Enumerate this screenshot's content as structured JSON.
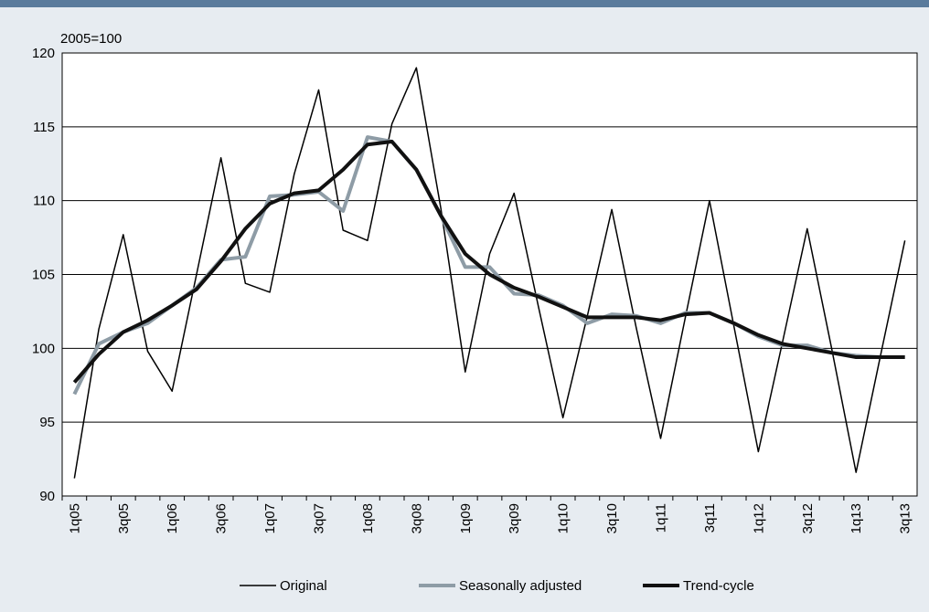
{
  "chart_data": {
    "type": "line",
    "y_label": "2005=100",
    "categories": [
      "1q05",
      null,
      "3q05",
      null,
      "1q06",
      null,
      "3q06",
      null,
      "1q07",
      null,
      "3q07",
      null,
      "1q08",
      null,
      "3q08",
      null,
      "1q09",
      null,
      "3q09",
      null,
      "1q10",
      null,
      "3q10",
      null,
      "1q11",
      null,
      "3q11",
      null,
      "1q12",
      null,
      "3q12",
      null,
      "1q13",
      null,
      "3q13"
    ],
    "series": [
      {
        "name": "Original",
        "color": "#000000",
        "width": 1.5,
        "values": [
          91.2,
          101.3,
          107.7,
          99.8,
          97.1,
          105.0,
          112.9,
          104.4,
          103.8,
          111.8,
          117.5,
          108.0,
          107.3,
          115.2,
          119.0,
          109.5,
          98.4,
          106.4,
          110.5,
          102.8,
          95.3,
          102.2,
          109.4,
          101.4,
          93.9,
          102.0,
          110.0,
          101.5,
          93.0,
          100.5,
          108.1,
          100.0,
          91.6,
          99.5,
          107.3
        ]
      },
      {
        "name": "Seasonally adjusted",
        "color": "#8e9ca6",
        "width": 4,
        "values": [
          96.9,
          100.3,
          101.1,
          101.7,
          102.9,
          104.1,
          106.0,
          106.2,
          110.3,
          110.4,
          110.6,
          109.3,
          114.3,
          114.0,
          112.1,
          109.0,
          105.5,
          105.5,
          103.7,
          103.6,
          102.9,
          101.7,
          102.3,
          102.2,
          101.7,
          102.4,
          102.4,
          101.7,
          100.8,
          100.2,
          100.2,
          99.7,
          99.5,
          99.4,
          99.4
        ]
      },
      {
        "name": "Trend-cycle",
        "color": "#111111",
        "width": 4,
        "values": [
          97.7,
          99.6,
          101.1,
          101.9,
          102.9,
          104.0,
          105.9,
          108.1,
          109.8,
          110.5,
          110.7,
          112.1,
          113.8,
          114.0,
          112.1,
          109.0,
          106.4,
          105.0,
          104.1,
          103.5,
          102.8,
          102.1,
          102.1,
          102.1,
          101.9,
          102.3,
          102.4,
          101.7,
          100.9,
          100.3,
          100.0,
          99.7,
          99.4,
          99.4,
          99.4
        ]
      }
    ],
    "ylim": [
      90,
      120
    ],
    "yticks": [
      90,
      95,
      100,
      105,
      110,
      115,
      120
    ],
    "grid": true,
    "legend": "bottom"
  }
}
